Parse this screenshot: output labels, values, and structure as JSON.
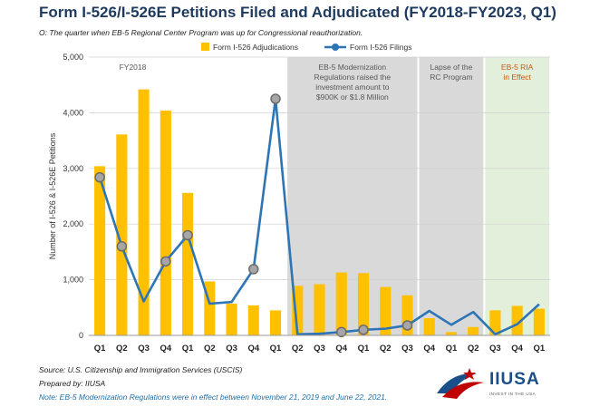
{
  "title": "Form I-526/I-526E Petitions Filed and Adjudicated (FY2018-FY2023, Q1)",
  "subtitle": "O: The quarter when EB-5 Regional Center Program was up for Congressional reauthorization.",
  "footer": {
    "source": "Source: U.S. Citizenship and Immigration Services (USCIS)",
    "prepared": "Prepared by: IIUSA",
    "note": "Note: EB-5 Modernization Regulations were in effect between November 21, 2019 and June 22, 2021."
  },
  "logo": {
    "word": "IIUSA",
    "tagline": "INVEST IN THE USA"
  },
  "colors": {
    "bar": "#ffc000",
    "line": "#2e75b6",
    "marker_fill": "#a6a6a6",
    "region_gray": "#d9d9d9",
    "region_green": "#e2efda",
    "ria_text": "#c55a11",
    "title": "#1f3a5f"
  },
  "chart_data": {
    "type": "bar",
    "title": "Form I-526/I-526E Petitions Filed and Adjudicated (FY2018-FY2023, Q1)",
    "ylabel": "Number of I-526 & I-526E Petitions",
    "ylim": [
      0,
      5000
    ],
    "yticks": [
      "0",
      "1,000",
      "2,000",
      "3,000",
      "4,000",
      "5,000"
    ],
    "grid": true,
    "legend": "top-center",
    "categories": [
      "Q1",
      "Q2",
      "Q3",
      "Q4",
      "Q1",
      "Q2",
      "Q3",
      "Q4",
      "Q1",
      "Q2",
      "Q3",
      "Q4",
      "Q1",
      "Q2",
      "Q3",
      "Q4",
      "Q1",
      "Q2",
      "Q3",
      "Q4",
      "Q1"
    ],
    "series": [
      {
        "name": "Form I-526 Adjudications",
        "type": "bar",
        "values": [
          3040,
          3610,
          4420,
          4040,
          2560,
          970,
          570,
          540,
          450,
          890,
          920,
          1130,
          1120,
          870,
          720,
          310,
          60,
          150,
          450,
          530,
          480
        ]
      },
      {
        "name": "Form I-526 Filings",
        "type": "line",
        "values": [
          2840,
          1600,
          610,
          1330,
          1800,
          570,
          600,
          1190,
          4250,
          20,
          30,
          60,
          100,
          120,
          180,
          440,
          190,
          420,
          20,
          200,
          560
        ],
        "reauthorization_markers": [
          0,
          1,
          3,
          4,
          7,
          8,
          11,
          12,
          14
        ]
      }
    ],
    "regions": [
      {
        "label": "FY2018",
        "start": 0,
        "end": 3,
        "shade": "none"
      },
      {
        "label": "EB-5 Modernization Regulations raised the investment amount to $900K or $1.8 Million",
        "lines": [
          "EB-5 Modernization",
          "Regulations raised the",
          "investment amount to",
          "$900K or $1.8 Million"
        ],
        "start": 9,
        "end": 14,
        "shade": "gray"
      },
      {
        "label": "Lapse of the RC Program",
        "lines": [
          "Lapse of the",
          "RC Program"
        ],
        "start": 15,
        "end": 17,
        "shade": "gray"
      },
      {
        "label": "EB-5 RIA in Effect",
        "lines": [
          "EB-5 RIA",
          "in Effect"
        ],
        "start": 18,
        "end": 20,
        "shade": "green"
      }
    ]
  }
}
